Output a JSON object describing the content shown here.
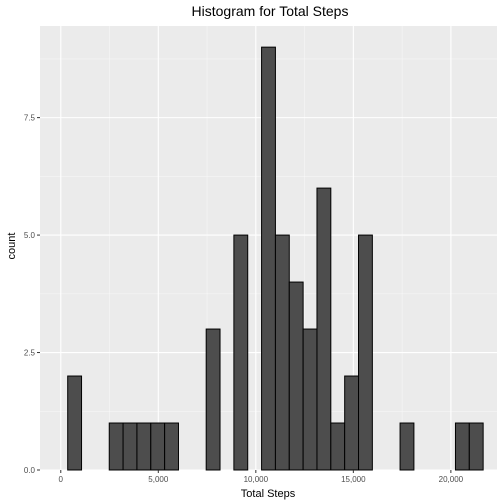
{
  "chart_data": {
    "type": "bar",
    "title": "Histogram for Total Steps",
    "xlabel": "Total Steps",
    "ylabel": "count",
    "bin_width": 710,
    "xlim": [
      -1065,
      22365
    ],
    "ylim": [
      0,
      9.45
    ],
    "x_ticks": [
      {
        "value": 0,
        "label": "0"
      },
      {
        "value": 5000,
        "label": "5,000"
      },
      {
        "value": 10000,
        "label": "10,000"
      },
      {
        "value": 15000,
        "label": "15,000"
      },
      {
        "value": 20000,
        "label": "20,000"
      }
    ],
    "y_ticks": [
      {
        "value": 0,
        "label": "0.0"
      },
      {
        "value": 2.5,
        "label": "2.5"
      },
      {
        "value": 5,
        "label": "5.0"
      },
      {
        "value": 7.5,
        "label": "7.5"
      }
    ],
    "bins": [
      -355,
      355,
      1065,
      1775,
      2485,
      3195,
      3905,
      4615,
      5325,
      6035,
      6745,
      7455,
      8165,
      8875,
      9585,
      10295,
      11005,
      11715,
      12425,
      13135,
      13845,
      14555,
      15265,
      15975,
      16685,
      17395,
      18105,
      18815,
      19525,
      20235,
      20945,
      21655,
      22365
    ],
    "counts": [
      0,
      2,
      0,
      0,
      1,
      1,
      1,
      1,
      1,
      0,
      0,
      3,
      0,
      5,
      0,
      9,
      5,
      4,
      3,
      6,
      1,
      2,
      5,
      0,
      0,
      1,
      0,
      0,
      0,
      1,
      1,
      0
    ],
    "colors": {
      "panel": "#ebebeb",
      "grid_major": "#ffffff",
      "bar_fill": "#4d4d4d",
      "bar_stroke": "#000000"
    }
  }
}
